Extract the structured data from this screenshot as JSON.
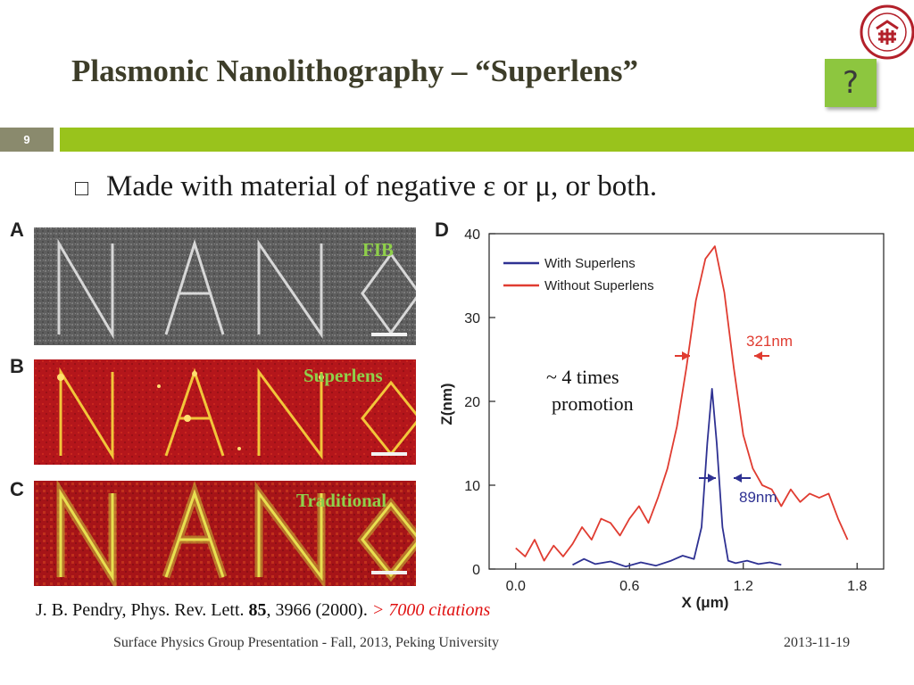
{
  "slide": {
    "title": "Plasmonic Nanolithography – “Superlens”",
    "slide_number": "9",
    "help_icon_glyph": "?",
    "bullet": "Made with material of negative ε or μ, or both.",
    "panels": {
      "a_letter": "A",
      "b_letter": "B",
      "c_letter": "C",
      "d_letter": "D",
      "a_label": "FIB",
      "b_label": "Superlens",
      "c_label": "Traditional"
    },
    "annotation_line1": "~ 4 times",
    "annotation_line2": "promotion",
    "reference": {
      "prefix": "J. B. Pendry, Phys. Rev. Lett. ",
      "volume": "85",
      "suffix": ", 3966 (2000). ",
      "highlight": "> 7000 citations"
    },
    "footer_left": "Surface Physics Group Presentation - Fall, 2013, Peking University",
    "footer_right": "2013-11-19"
  },
  "colors": {
    "accent_green": "#99c31c",
    "title_color": "#3d3d29",
    "label_green": "#8fd04a",
    "with_superlens": "#2e3192",
    "without_superlens": "#e03c31",
    "citation_red": "#e01010"
  },
  "chart_data": {
    "type": "line",
    "xlabel": "X (μm)",
    "ylabel": "Z(nm)",
    "xlim": [
      -0.14,
      1.94
    ],
    "ylim": [
      0,
      40
    ],
    "xticks": [
      "0.0",
      "0.6",
      "1.2",
      "1.8"
    ],
    "yticks": [
      "0",
      "10",
      "20",
      "30",
      "40"
    ],
    "legend_position": "top-left",
    "annotations": [
      "321nm",
      "89nm"
    ],
    "series": [
      {
        "name": "With Superlens",
        "color": "#2e3192",
        "x": [
          0.3,
          0.36,
          0.42,
          0.5,
          0.58,
          0.66,
          0.74,
          0.82,
          0.88,
          0.94,
          0.98,
          1.01,
          1.035,
          1.06,
          1.09,
          1.12,
          1.16,
          1.22,
          1.28,
          1.34,
          1.4
        ],
        "y": [
          0.5,
          1.2,
          0.6,
          0.9,
          0.3,
          0.8,
          0.4,
          1.0,
          1.6,
          1.2,
          5,
          15,
          21.5,
          15,
          5,
          1.0,
          0.7,
          1.0,
          0.6,
          0.8,
          0.5
        ]
      },
      {
        "name": "Without Superlens",
        "color": "#e03c31",
        "x": [
          0.0,
          0.05,
          0.1,
          0.15,
          0.2,
          0.25,
          0.3,
          0.35,
          0.4,
          0.45,
          0.5,
          0.55,
          0.6,
          0.65,
          0.7,
          0.75,
          0.8,
          0.85,
          0.9,
          0.95,
          1.0,
          1.05,
          1.1,
          1.15,
          1.2,
          1.25,
          1.3,
          1.35,
          1.4,
          1.45,
          1.5,
          1.55,
          1.6,
          1.65,
          1.7,
          1.75
        ],
        "y": [
          2.5,
          1.5,
          3.5,
          1.0,
          2.8,
          1.5,
          3.0,
          5.0,
          3.5,
          6.0,
          5.5,
          4.0,
          6.0,
          7.5,
          5.5,
          8.5,
          12.0,
          17.0,
          24.0,
          32.0,
          37.0,
          38.5,
          33.0,
          24.0,
          16.0,
          12.0,
          10.0,
          9.5,
          7.5,
          9.5,
          8.0,
          9.0,
          8.5,
          9.0,
          6.0,
          3.5
        ]
      }
    ]
  }
}
